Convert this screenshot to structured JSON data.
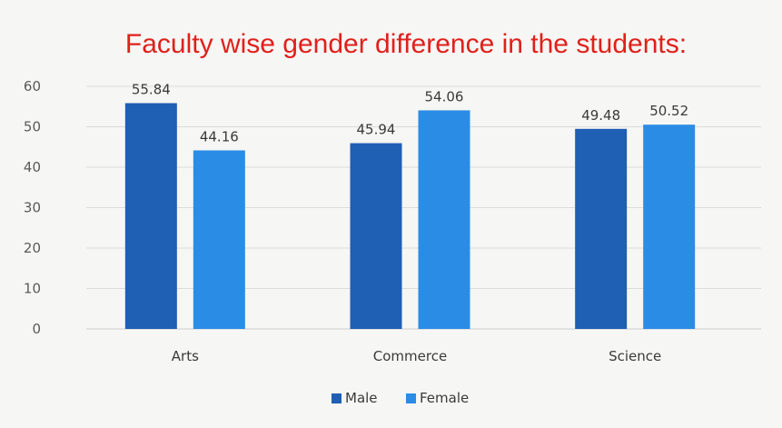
{
  "chart_data": {
    "type": "bar",
    "title": "Faculty wise gender difference in the students:",
    "xlabel": "",
    "ylabel": "",
    "categories": [
      "Arts",
      "Commerce",
      "Science"
    ],
    "series": [
      {
        "name": "Male",
        "values": [
          55.84,
          45.94,
          49.48
        ],
        "value_labels": [
          "55.84",
          "45.94",
          "49.48"
        ],
        "color": "#1f5fb4"
      },
      {
        "name": "Female",
        "values": [
          44.16,
          54.06,
          50.52
        ],
        "value_labels": [
          "44.16",
          "54.06",
          "50.52"
        ],
        "color": "#2b8ce6"
      }
    ],
    "ylim": [
      0,
      60
    ],
    "yticks": [
      "0",
      "10",
      "20",
      "30",
      "40",
      "50",
      "60"
    ],
    "grid": true,
    "legend_position": "bottom"
  },
  "legend": {
    "male_label": "Male",
    "female_label": "Female"
  }
}
